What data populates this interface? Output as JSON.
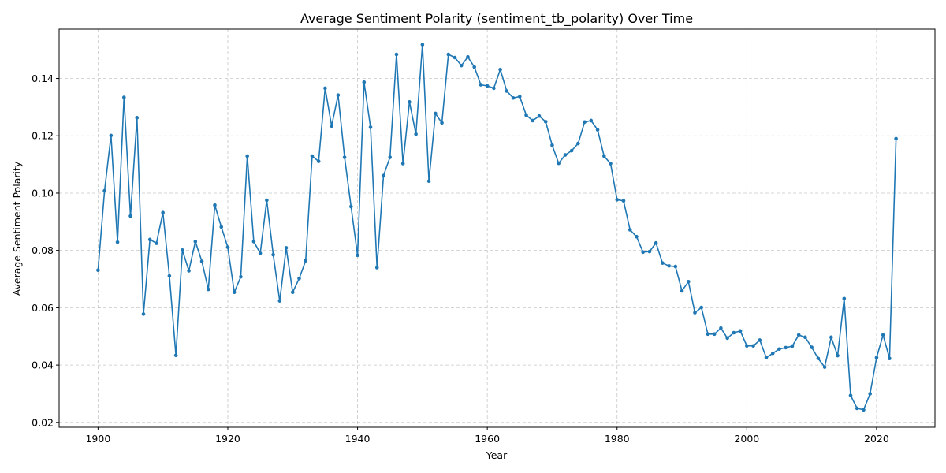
{
  "chart_data": {
    "type": "line",
    "title": "Average Sentiment Polarity (sentiment_tb_polarity) Over Time",
    "xlabel": "Year",
    "ylabel": "Average Sentiment Polarity",
    "xlim": [
      1894,
      2029
    ],
    "ylim": [
      0.0183,
      0.1572
    ],
    "xticks": [
      1900,
      1920,
      1940,
      1960,
      1980,
      2000,
      2020
    ],
    "yticks": [
      0.02,
      0.04,
      0.06,
      0.08,
      0.1,
      0.12,
      0.14
    ],
    "ytick_labels": [
      "0.02",
      "0.04",
      "0.06",
      "0.08",
      "0.10",
      "0.12",
      "0.14"
    ],
    "grid": true,
    "line_color": "#1f77b4",
    "series": [
      {
        "x": [
          1900,
          1901,
          1902,
          1903,
          1904,
          1905,
          1906,
          1907,
          1908,
          1909,
          1910,
          1911,
          1912,
          1913,
          1914,
          1915,
          1916,
          1917,
          1918,
          1919,
          1920,
          1921,
          1922,
          1923,
          1924,
          1925,
          1926,
          1927,
          1928,
          1929,
          1930,
          1931,
          1932,
          1933,
          1934,
          1935,
          1936,
          1937,
          1938,
          1939,
          1940,
          1941,
          1942,
          1943,
          1944,
          1945,
          1946,
          1947,
          1948,
          1949,
          1950,
          1951,
          1952,
          1953,
          1954,
          1955,
          1956,
          1957,
          1958,
          1959,
          1960,
          1961,
          1962,
          1963,
          1964,
          1965,
          1966,
          1967,
          1968,
          1969,
          1970,
          1971,
          1972,
          1973,
          1974,
          1975,
          1976,
          1977,
          1978,
          1979,
          1980,
          1981,
          1982,
          1983,
          1984,
          1985,
          1986,
          1987,
          1988,
          1989,
          1990,
          1991,
          1992,
          1993,
          1994,
          1995,
          1996,
          1997,
          1998,
          1999,
          2000,
          2001,
          2002,
          2003,
          2004,
          2005,
          2006,
          2007,
          2008,
          2009,
          2010,
          2011,
          2012,
          2013,
          2014,
          2015,
          2016,
          2017,
          2018,
          2019,
          2020,
          2021,
          2022,
          2023
        ],
        "values": [
          0.0731,
          0.1008,
          0.1201,
          0.0829,
          0.1334,
          0.092,
          0.1263,
          0.0578,
          0.0838,
          0.0825,
          0.0932,
          0.0711,
          0.0434,
          0.0801,
          0.0729,
          0.0831,
          0.0762,
          0.0664,
          0.0958,
          0.0882,
          0.0811,
          0.0654,
          0.0708,
          0.1129,
          0.0831,
          0.079,
          0.0975,
          0.0785,
          0.0624,
          0.0809,
          0.0654,
          0.0702,
          0.0764,
          0.1129,
          0.1111,
          0.1366,
          0.1234,
          0.1342,
          0.1125,
          0.0953,
          0.0783,
          0.1387,
          0.123,
          0.074,
          0.1061,
          0.1125,
          0.1484,
          0.1103,
          0.1318,
          0.1206,
          0.1518,
          0.1042,
          0.1278,
          0.1245,
          0.1484,
          0.1473,
          0.1445,
          0.1475,
          0.144,
          0.1378,
          0.1374,
          0.1366,
          0.1431,
          0.1356,
          0.1332,
          0.1337,
          0.1272,
          0.1253,
          0.1269,
          0.1249,
          0.1167,
          0.1104,
          0.1133,
          0.1148,
          0.1173,
          0.1248,
          0.1253,
          0.1221,
          0.1129,
          0.1103,
          0.0977,
          0.0973,
          0.0872,
          0.0848,
          0.0794,
          0.0796,
          0.0826,
          0.0756,
          0.0746,
          0.0744,
          0.0659,
          0.0691,
          0.0583,
          0.0601,
          0.0508,
          0.0508,
          0.0529,
          0.0494,
          0.0513,
          0.0519,
          0.0467,
          0.0467,
          0.0487,
          0.0426,
          0.0441,
          0.0456,
          0.0461,
          0.0466,
          0.0505,
          0.0497,
          0.0462,
          0.0423,
          0.0393,
          0.0497,
          0.0433,
          0.0632,
          0.0294,
          0.0249,
          0.0244,
          0.03,
          0.0426,
          0.0505,
          0.0423,
          0.119
        ]
      }
    ]
  }
}
